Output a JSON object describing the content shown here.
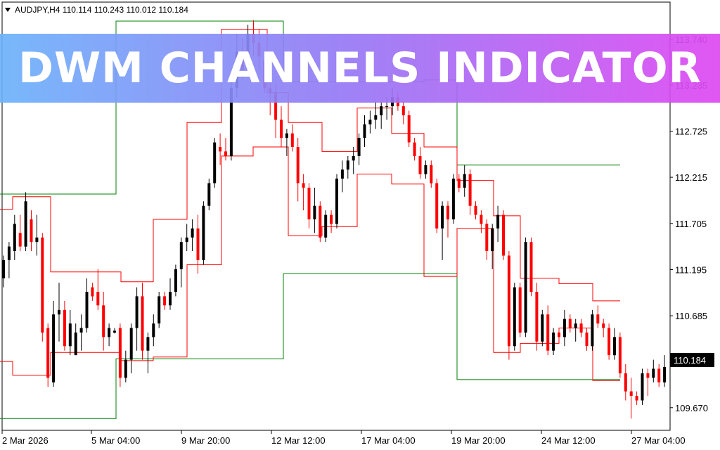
{
  "header": {
    "symbol_label": "AUDJPY,H4 110.114 110.243 110.012 110.184"
  },
  "banner": {
    "title": "DWM CHANNELS INDICATOR"
  },
  "colors": {
    "bull": "#000000",
    "bear": "#ff0000",
    "channel_daily": "#ff0000",
    "channel_weekly": "#008000",
    "last_price_bg": "#000000"
  },
  "icons": {
    "symbol_menu": "triangle-down-icon"
  },
  "chart_data": {
    "type": "candlestick",
    "symbol": "AUDJPY",
    "timeframe": "H4",
    "ohlc_header": {
      "open": 110.114,
      "high": 110.243,
      "low": 110.012,
      "close": 110.184
    },
    "last_price": "110.184",
    "y_ticks": [
      "113.740",
      "113.235",
      "112.725",
      "112.215",
      "111.705",
      "111.195",
      "110.685",
      "109.670"
    ],
    "x_ticks": [
      "2 Mar 2026",
      "5 Mar 04:00",
      "9 Mar 20:00",
      "12 Mar 12:00",
      "17 Mar 04:00",
      "19 Mar 20:00",
      "24 Mar 12:00",
      "27 Mar 04:00"
    ],
    "ylim": [
      109.42,
      114.15
    ],
    "candles": [
      [
        111.1,
        111.35,
        111.0,
        111.3
      ],
      [
        111.3,
        111.5,
        111.1,
        111.45
      ],
      [
        111.4,
        111.8,
        111.3,
        111.7
      ],
      [
        111.6,
        111.8,
        111.4,
        111.45
      ],
      [
        111.45,
        112.05,
        111.4,
        111.95
      ],
      [
        111.75,
        111.85,
        111.4,
        111.5
      ],
      [
        111.5,
        111.8,
        111.35,
        111.55
      ],
      [
        111.55,
        111.6,
        110.4,
        110.5
      ],
      [
        110.55,
        110.6,
        109.9,
        110.0
      ],
      [
        109.95,
        110.85,
        109.9,
        110.7
      ],
      [
        110.7,
        111.05,
        110.4,
        110.75
      ],
      [
        110.75,
        110.85,
        110.3,
        110.35
      ],
      [
        110.35,
        110.75,
        110.25,
        110.6
      ],
      [
        110.25,
        110.6,
        110.25,
        110.5
      ],
      [
        110.5,
        110.7,
        110.3,
        110.55
      ],
      [
        110.55,
        111.1,
        110.5,
        110.95
      ],
      [
        111.0,
        111.05,
        110.85,
        110.9
      ],
      [
        110.95,
        111.2,
        110.75,
        110.8
      ],
      [
        110.8,
        110.95,
        110.3,
        110.45
      ],
      [
        110.45,
        110.6,
        110.35,
        110.55
      ],
      [
        110.5,
        110.55,
        110.49,
        110.52
      ],
      [
        110.55,
        110.6,
        109.9,
        110.0
      ],
      [
        110.0,
        110.3,
        109.95,
        110.2
      ],
      [
        110.2,
        110.6,
        110.05,
        110.55
      ],
      [
        110.55,
        111.0,
        110.3,
        110.9
      ],
      [
        110.9,
        111.05,
        110.2,
        110.3
      ],
      [
        110.3,
        110.5,
        110.05,
        110.45
      ],
      [
        110.45,
        110.7,
        110.35,
        110.6
      ],
      [
        110.6,
        110.95,
        110.55,
        110.9
      ],
      [
        110.9,
        110.95,
        110.75,
        110.8
      ],
      [
        110.8,
        111.1,
        110.75,
        110.95
      ],
      [
        110.95,
        111.25,
        110.9,
        111.2
      ],
      [
        111.2,
        111.55,
        111.0,
        111.5
      ],
      [
        111.5,
        111.7,
        111.4,
        111.55
      ],
      [
        111.55,
        111.75,
        111.4,
        111.65
      ],
      [
        111.65,
        111.8,
        111.15,
        111.3
      ],
      [
        111.3,
        111.95,
        111.25,
        111.9
      ],
      [
        111.9,
        112.2,
        111.85,
        112.15
      ],
      [
        112.15,
        112.65,
        112.1,
        112.6
      ],
      [
        112.55,
        112.7,
        112.35,
        112.5
      ],
      [
        112.5,
        112.65,
        112.4,
        112.45
      ],
      [
        112.45,
        113.35,
        112.4,
        113.2
      ],
      [
        113.2,
        113.8,
        113.1,
        113.6
      ],
      [
        113.6,
        113.75,
        113.3,
        113.4
      ],
      [
        113.4,
        113.9,
        113.35,
        113.8
      ],
      [
        113.8,
        113.95,
        113.55,
        113.7
      ],
      [
        113.7,
        113.85,
        113.4,
        113.55
      ],
      [
        113.5,
        113.55,
        113.15,
        113.2
      ],
      [
        113.2,
        113.4,
        112.9,
        113.15
      ],
      [
        113.15,
        113.25,
        112.65,
        112.85
      ],
      [
        112.85,
        113.0,
        112.55,
        112.65
      ],
      [
        112.65,
        112.75,
        112.45,
        112.7
      ],
      [
        112.7,
        112.8,
        112.5,
        112.55
      ],
      [
        112.55,
        112.65,
        111.95,
        112.15
      ],
      [
        112.15,
        112.25,
        111.85,
        112.1
      ],
      [
        112.1,
        112.15,
        111.65,
        111.75
      ],
      [
        111.75,
        112.1,
        111.6,
        111.9
      ],
      [
        111.9,
        111.95,
        111.5,
        111.55
      ],
      [
        111.55,
        111.85,
        111.5,
        111.8
      ],
      [
        111.8,
        111.85,
        111.6,
        111.7
      ],
      [
        111.7,
        112.25,
        111.65,
        112.2
      ],
      [
        112.2,
        112.4,
        112.05,
        112.3
      ],
      [
        112.3,
        112.45,
        112.2,
        112.4
      ],
      [
        112.4,
        112.55,
        112.25,
        112.45
      ],
      [
        112.45,
        112.7,
        112.35,
        112.65
      ],
      [
        112.65,
        112.9,
        112.55,
        112.8
      ],
      [
        112.8,
        112.95,
        112.7,
        112.85
      ],
      [
        112.85,
        113.05,
        112.75,
        112.9
      ],
      [
        112.9,
        113.05,
        112.75,
        113.0
      ],
      [
        113.0,
        113.1,
        112.85,
        113.0
      ],
      [
        113.0,
        113.2,
        112.9,
        113.1
      ],
      [
        113.1,
        113.15,
        112.95,
        113.0
      ],
      [
        113.0,
        113.05,
        112.8,
        112.9
      ],
      [
        112.9,
        112.95,
        112.55,
        112.6
      ],
      [
        112.6,
        112.65,
        112.4,
        112.45
      ],
      [
        112.45,
        112.55,
        112.2,
        112.25
      ],
      [
        112.25,
        112.4,
        112.2,
        112.35
      ],
      [
        112.35,
        112.4,
        112.1,
        112.15
      ],
      [
        112.15,
        112.2,
        111.6,
        111.65
      ],
      [
        111.65,
        111.95,
        111.3,
        111.9
      ],
      [
        111.9,
        111.95,
        111.55,
        111.75
      ],
      [
        111.75,
        112.25,
        111.7,
        112.2
      ],
      [
        112.2,
        112.25,
        112.05,
        112.1
      ],
      [
        112.1,
        112.35,
        112.0,
        112.25
      ],
      [
        112.25,
        112.3,
        111.8,
        111.9
      ],
      [
        111.9,
        111.95,
        111.75,
        111.8
      ],
      [
        111.8,
        111.85,
        111.6,
        111.7
      ],
      [
        111.7,
        111.75,
        111.3,
        111.4
      ],
      [
        111.4,
        111.7,
        111.2,
        111.65
      ],
      [
        111.65,
        111.9,
        111.5,
        111.8
      ],
      [
        111.8,
        111.85,
        111.3,
        111.35
      ],
      [
        111.35,
        111.4,
        110.2,
        110.35
      ],
      [
        110.35,
        111.05,
        110.3,
        111.0
      ],
      [
        111.0,
        111.05,
        110.45,
        110.5
      ],
      [
        110.5,
        111.55,
        110.45,
        111.5
      ],
      [
        111.5,
        111.55,
        110.9,
        110.95
      ],
      [
        110.95,
        111.05,
        110.3,
        110.4
      ],
      [
        110.4,
        110.75,
        110.35,
        110.7
      ],
      [
        110.7,
        110.8,
        110.25,
        110.3
      ],
      [
        110.3,
        110.55,
        110.25,
        110.5
      ],
      [
        110.5,
        110.55,
        110.4,
        110.45
      ],
      [
        110.45,
        110.75,
        110.35,
        110.65
      ],
      [
        110.65,
        110.7,
        110.5,
        110.55
      ],
      [
        110.55,
        110.65,
        110.4,
        110.6
      ],
      [
        110.6,
        110.65,
        110.45,
        110.5
      ],
      [
        110.5,
        110.55,
        110.3,
        110.35
      ],
      [
        110.35,
        110.75,
        110.3,
        110.7
      ],
      [
        110.7,
        110.8,
        110.55,
        110.6
      ],
      [
        110.6,
        110.65,
        110.45,
        110.55
      ],
      [
        110.55,
        110.6,
        110.2,
        110.25
      ],
      [
        110.25,
        110.55,
        110.2,
        110.45
      ],
      [
        110.45,
        110.5,
        110.0,
        110.05
      ],
      [
        110.05,
        110.15,
        109.75,
        109.85
      ],
      [
        109.85,
        110.0,
        109.55,
        109.8
      ],
      [
        109.8,
        109.85,
        109.7,
        109.75
      ],
      [
        109.75,
        110.1,
        109.7,
        110.05
      ],
      [
        110.05,
        110.1,
        109.8,
        110.0
      ],
      [
        110.0,
        110.2,
        109.95,
        110.1
      ],
      [
        110.1,
        110.15,
        109.9,
        109.95
      ],
      [
        109.95,
        110.25,
        109.9,
        110.12
      ]
    ],
    "channel_daily": {
      "upper": [
        [
          0,
          111.86
        ],
        [
          18,
          111.86
        ],
        [
          18,
          112.0
        ],
        [
          72,
          112.0
        ],
        [
          72,
          111.17
        ],
        [
          172,
          111.17
        ],
        [
          172,
          111.06
        ],
        [
          218,
          111.06
        ],
        [
          218,
          111.75
        ],
        [
          266,
          111.75
        ],
        [
          266,
          112.82
        ],
        [
          315,
          112.82
        ],
        [
          315,
          113.85
        ],
        [
          380,
          113.85
        ],
        [
          380,
          113.15
        ],
        [
          410,
          113.15
        ],
        [
          410,
          112.82
        ],
        [
          458,
          112.82
        ],
        [
          458,
          112.5
        ],
        [
          508,
          112.5
        ],
        [
          508,
          112.98
        ],
        [
          557,
          112.98
        ],
        [
          557,
          112.7
        ],
        [
          603,
          112.7
        ],
        [
          603,
          112.55
        ],
        [
          650,
          112.55
        ],
        [
          650,
          112.18
        ],
        [
          702,
          112.18
        ],
        [
          702,
          111.79
        ],
        [
          740,
          111.79
        ],
        [
          740,
          111.1
        ],
        [
          795,
          111.1
        ],
        [
          795,
          111.04
        ],
        [
          843,
          111.04
        ],
        [
          843,
          110.85
        ],
        [
          882,
          110.85
        ]
      ],
      "lower": [
        [
          0,
          110.18
        ],
        [
          18,
          110.18
        ],
        [
          18,
          110.03
        ],
        [
          72,
          110.03
        ],
        [
          72,
          110.28
        ],
        [
          172,
          110.28
        ],
        [
          172,
          110.19
        ],
        [
          218,
          110.19
        ],
        [
          218,
          110.23
        ],
        [
          266,
          110.23
        ],
        [
          266,
          111.25
        ],
        [
          315,
          111.25
        ],
        [
          315,
          112.45
        ],
        [
          360,
          112.45
        ],
        [
          360,
          112.55
        ],
        [
          410,
          112.55
        ],
        [
          410,
          111.57
        ],
        [
          458,
          111.57
        ],
        [
          458,
          111.67
        ],
        [
          508,
          111.67
        ],
        [
          508,
          112.25
        ],
        [
          557,
          112.25
        ],
        [
          557,
          112.14
        ],
        [
          603,
          112.14
        ],
        [
          603,
          111.12
        ],
        [
          650,
          111.12
        ],
        [
          650,
          111.65
        ],
        [
          702,
          111.65
        ],
        [
          702,
          110.28
        ],
        [
          740,
          110.28
        ],
        [
          740,
          110.38
        ],
        [
          795,
          110.38
        ],
        [
          795,
          110.55
        ],
        [
          843,
          110.55
        ],
        [
          843,
          109.97
        ],
        [
          882,
          109.97
        ]
      ]
    },
    "channel_weekly": {
      "upper": [
        [
          0,
          112.03
        ],
        [
          165,
          112.03
        ],
        [
          165,
          113.94
        ],
        [
          403,
          113.94
        ],
        [
          403,
          113.27
        ],
        [
          603,
          113.27
        ],
        [
          603,
          113.29
        ],
        [
          650,
          113.29
        ],
        [
          650,
          112.35
        ],
        [
          882,
          112.35
        ]
      ],
      "lower": [
        [
          0,
          109.55
        ],
        [
          165,
          109.55
        ],
        [
          165,
          110.21
        ],
        [
          403,
          110.21
        ],
        [
          403,
          111.15
        ],
        [
          603,
          111.15
        ],
        [
          603,
          111.15
        ],
        [
          650,
          111.15
        ],
        [
          650,
          109.98
        ],
        [
          882,
          109.98
        ]
      ]
    }
  }
}
